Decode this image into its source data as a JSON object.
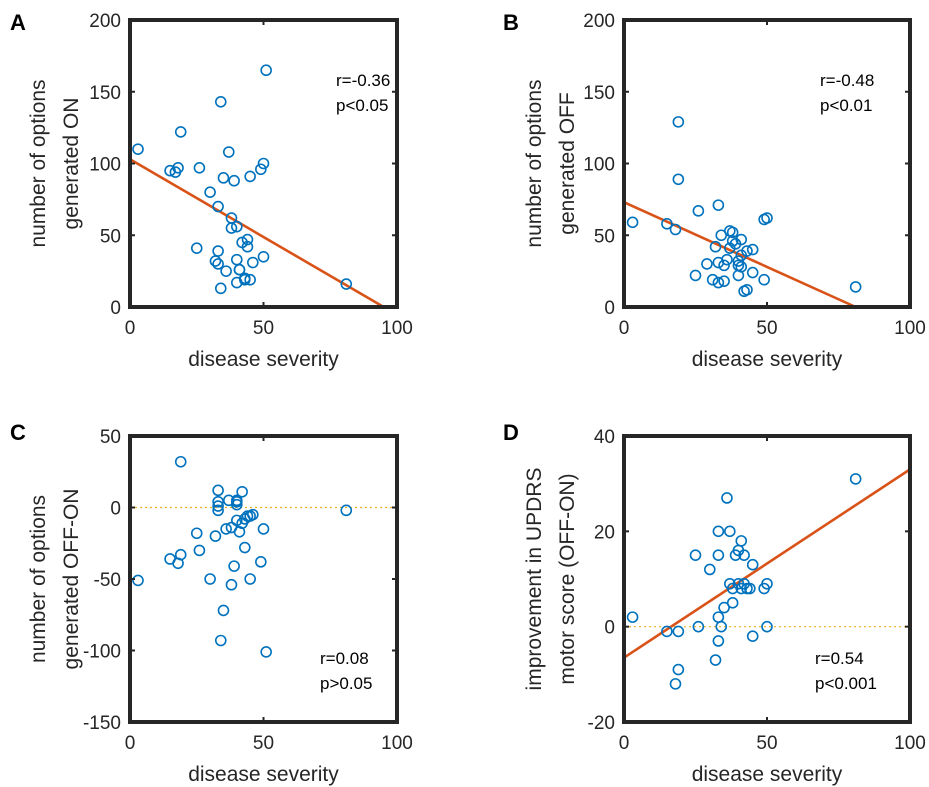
{
  "colors": {
    "points": "#0072BD",
    "fit": "#D95319",
    "zero": "#EDB120",
    "axes": "#262626"
  },
  "chart_data": [
    {
      "panel": "A",
      "type": "scatter",
      "xlabel": "disease severity",
      "ylabel": [
        "number of options",
        "generated ON"
      ],
      "xlim": [
        0,
        100
      ],
      "ylim": [
        0,
        200
      ],
      "xticks": [
        0,
        50,
        100
      ],
      "yticks": [
        0,
        50,
        100,
        150,
        200
      ],
      "grid": false,
      "annotation": [
        "r=-0.36",
        "p<0.05"
      ],
      "fit_line": [
        [
          0,
          103
        ],
        [
          95,
          0
        ]
      ],
      "zero_line": false,
      "points": [
        [
          3,
          110
        ],
        [
          15,
          95
        ],
        [
          17,
          94
        ],
        [
          18,
          97
        ],
        [
          19,
          122
        ],
        [
          25,
          41
        ],
        [
          26,
          97
        ],
        [
          30,
          80
        ],
        [
          32,
          32
        ],
        [
          33,
          30
        ],
        [
          33,
          39
        ],
        [
          33,
          70
        ],
        [
          34,
          13
        ],
        [
          34,
          143
        ],
        [
          35,
          90
        ],
        [
          36,
          25
        ],
        [
          37,
          108
        ],
        [
          38,
          55
        ],
        [
          38,
          62
        ],
        [
          39,
          88
        ],
        [
          40,
          17
        ],
        [
          40,
          33
        ],
        [
          40,
          56
        ],
        [
          41,
          26
        ],
        [
          41,
          26
        ],
        [
          42,
          45
        ],
        [
          43,
          19
        ],
        [
          43,
          20
        ],
        [
          44,
          42
        ],
        [
          44,
          47
        ],
        [
          45,
          19
        ],
        [
          45,
          91
        ],
        [
          46,
          31
        ],
        [
          49,
          96
        ],
        [
          50,
          35
        ],
        [
          50,
          100
        ],
        [
          51,
          165
        ],
        [
          81,
          16
        ]
      ]
    },
    {
      "panel": "B",
      "type": "scatter",
      "xlabel": "disease severity",
      "ylabel": [
        "number of options",
        "generated OFF"
      ],
      "xlim": [
        0,
        100
      ],
      "ylim": [
        0,
        200
      ],
      "xticks": [
        0,
        50,
        100
      ],
      "yticks": [
        0,
        50,
        100,
        150,
        200
      ],
      "grid": false,
      "annotation": [
        "r=-0.48",
        "p<0.01"
      ],
      "fit_line": [
        [
          0,
          73
        ],
        [
          81,
          0
        ]
      ],
      "zero_line": false,
      "points": [
        [
          3,
          59
        ],
        [
          15,
          58
        ],
        [
          18,
          54
        ],
        [
          19,
          89
        ],
        [
          19,
          129
        ],
        [
          25,
          22
        ],
        [
          26,
          67
        ],
        [
          29,
          30
        ],
        [
          31,
          19
        ],
        [
          32,
          42
        ],
        [
          33,
          17
        ],
        [
          33,
          31
        ],
        [
          33,
          71
        ],
        [
          34,
          50
        ],
        [
          35,
          18
        ],
        [
          35,
          29
        ],
        [
          36,
          33
        ],
        [
          37,
          41
        ],
        [
          37,
          53
        ],
        [
          38,
          46
        ],
        [
          38,
          52
        ],
        [
          39,
          44
        ],
        [
          40,
          22
        ],
        [
          40,
          32
        ],
        [
          40,
          29
        ],
        [
          41,
          28
        ],
        [
          41,
          36
        ],
        [
          41,
          47
        ],
        [
          42,
          11
        ],
        [
          43,
          12
        ],
        [
          43,
          39
        ],
        [
          45,
          40
        ],
        [
          45,
          24
        ],
        [
          49,
          61
        ],
        [
          49,
          19
        ],
        [
          50,
          62
        ],
        [
          81,
          14
        ]
      ]
    },
    {
      "panel": "C",
      "type": "scatter",
      "xlabel": "disease severity",
      "ylabel": [
        "number of options",
        "generated OFF-ON"
      ],
      "xlim": [
        0,
        100
      ],
      "ylim": [
        -150,
        50
      ],
      "xticks": [
        0,
        50,
        100
      ],
      "yticks": [
        -150,
        -100,
        -50,
        0,
        50
      ],
      "grid": false,
      "annotation": [
        "r=0.08",
        "p>0.05"
      ],
      "fit_line": null,
      "zero_line": true,
      "points": [
        [
          3,
          -51
        ],
        [
          15,
          -36
        ],
        [
          18,
          -39
        ],
        [
          19,
          -33
        ],
        [
          19,
          32
        ],
        [
          25,
          -18
        ],
        [
          26,
          -30
        ],
        [
          30,
          -50
        ],
        [
          32,
          -20
        ],
        [
          33,
          -2
        ],
        [
          33,
          1
        ],
        [
          33,
          4
        ],
        [
          33,
          12
        ],
        [
          34,
          -93
        ],
        [
          35,
          -72
        ],
        [
          36,
          -15
        ],
        [
          37,
          5
        ],
        [
          38,
          -54
        ],
        [
          38,
          -14
        ],
        [
          39,
          -41
        ],
        [
          40,
          -9
        ],
        [
          40,
          2
        ],
        [
          40,
          4
        ],
        [
          40,
          5
        ],
        [
          41,
          -17
        ],
        [
          42,
          -11
        ],
        [
          42,
          11
        ],
        [
          43,
          -28
        ],
        [
          43,
          -8
        ],
        [
          44,
          -6
        ],
        [
          45,
          -50
        ],
        [
          45,
          -6
        ],
        [
          46,
          -5
        ],
        [
          49,
          -38
        ],
        [
          50,
          -15
        ],
        [
          51,
          -101
        ],
        [
          81,
          -2
        ]
      ]
    },
    {
      "panel": "D",
      "type": "scatter",
      "xlabel": "disease severity",
      "ylabel": [
        "improvement in UPDRS",
        "motor score (OFF-ON)"
      ],
      "xlim": [
        0,
        100
      ],
      "ylim": [
        -20,
        40
      ],
      "xticks": [
        0,
        50,
        100
      ],
      "yticks": [
        -20,
        0,
        20,
        40
      ],
      "grid": false,
      "annotation": [
        "r=0.54",
        "p<0.001"
      ],
      "fit_line": [
        [
          0,
          -6.5
        ],
        [
          100,
          33
        ]
      ],
      "zero_line": true,
      "points": [
        [
          3,
          2
        ],
        [
          15,
          -1
        ],
        [
          18,
          -12
        ],
        [
          19,
          -9
        ],
        [
          19,
          -1
        ],
        [
          25,
          15
        ],
        [
          26,
          0
        ],
        [
          30,
          12
        ],
        [
          32,
          -7
        ],
        [
          33,
          -3
        ],
        [
          33,
          2
        ],
        [
          33,
          15
        ],
        [
          33,
          20
        ],
        [
          34,
          0
        ],
        [
          35,
          4
        ],
        [
          36,
          27
        ],
        [
          37,
          20
        ],
        [
          37,
          9
        ],
        [
          38,
          5
        ],
        [
          38,
          8
        ],
        [
          39,
          15
        ],
        [
          40,
          16
        ],
        [
          40,
          9
        ],
        [
          41,
          18
        ],
        [
          41,
          8
        ],
        [
          42,
          9
        ],
        [
          42,
          15
        ],
        [
          43,
          8
        ],
        [
          44,
          8
        ],
        [
          45,
          13
        ],
        [
          45,
          -2
        ],
        [
          49,
          8
        ],
        [
          50,
          9
        ],
        [
          50,
          0
        ],
        [
          81,
          31
        ]
      ]
    }
  ]
}
